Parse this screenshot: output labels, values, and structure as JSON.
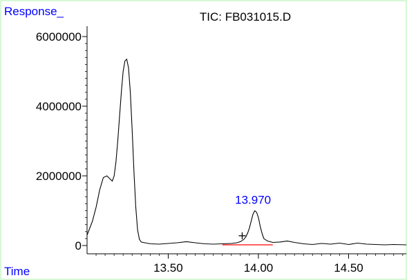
{
  "chart_data": {
    "type": "line",
    "title": "TIC: FB031015.D",
    "ylabel": "Response_",
    "xlabel": "Time",
    "xlim": [
      13.05,
      14.82
    ],
    "ylim": [
      0,
      6000000
    ],
    "x_ticks": [
      13.5,
      14.0,
      14.5
    ],
    "x_tick_labels": [
      "13.50",
      "14.00",
      "14.50"
    ],
    "y_ticks": [
      0,
      2000000,
      4000000,
      6000000
    ],
    "y_tick_labels": [
      "0",
      "2000000",
      "4000000",
      "6000000"
    ],
    "grid": false,
    "legend": "none",
    "colors": {
      "trace": "#000000",
      "baseline": "#ff0000",
      "annotation": "#0000ff",
      "frame": "#b9f2b9"
    },
    "series": [
      {
        "x": [
          13.05,
          13.08,
          13.1,
          13.12,
          13.14,
          13.16,
          13.17,
          13.18,
          13.19,
          13.2,
          13.21,
          13.22,
          13.23,
          13.24,
          13.25,
          13.26,
          13.27,
          13.28,
          13.29,
          13.3,
          13.31,
          13.32,
          13.33,
          13.34,
          13.35,
          13.37,
          13.4,
          13.45,
          13.5,
          13.55,
          13.6,
          13.65,
          13.7,
          13.75,
          13.8,
          13.85,
          13.88,
          13.9,
          13.92,
          13.93,
          13.94,
          13.95,
          13.96,
          13.97,
          13.98,
          13.99,
          14.0,
          14.01,
          14.02,
          14.03,
          14.05,
          14.08,
          14.12,
          14.16,
          14.2,
          14.25,
          14.3,
          14.35,
          14.4,
          14.45,
          14.5,
          14.55,
          14.6,
          14.65,
          14.7,
          14.75,
          14.82
        ],
        "y": [
          300000,
          700000,
          1100000,
          1600000,
          1950000,
          2000000,
          1950000,
          1900000,
          1850000,
          2000000,
          2400000,
          3000000,
          3700000,
          4400000,
          5000000,
          5300000,
          5350000,
          5100000,
          4400000,
          3300000,
          2100000,
          1100000,
          450000,
          180000,
          100000,
          80000,
          50000,
          40000,
          60000,
          80000,
          110000,
          80000,
          50000,
          40000,
          50000,
          60000,
          80000,
          110000,
          180000,
          250000,
          350000,
          500000,
          700000,
          900000,
          1000000,
          950000,
          800000,
          550000,
          350000,
          200000,
          130000,
          90000,
          100000,
          130000,
          90000,
          50000,
          30000,
          60000,
          40000,
          70000,
          30000,
          70000,
          40000,
          30000,
          20000,
          30000,
          20000
        ]
      }
    ],
    "annotations": [
      {
        "text": "13.970",
        "x": 13.97,
        "y": 1000000
      },
      {
        "text": "+",
        "x": 13.91,
        "y": 280000
      }
    ],
    "baseline": {
      "x": [
        13.8,
        14.08
      ],
      "y": [
        20000,
        20000
      ]
    }
  }
}
